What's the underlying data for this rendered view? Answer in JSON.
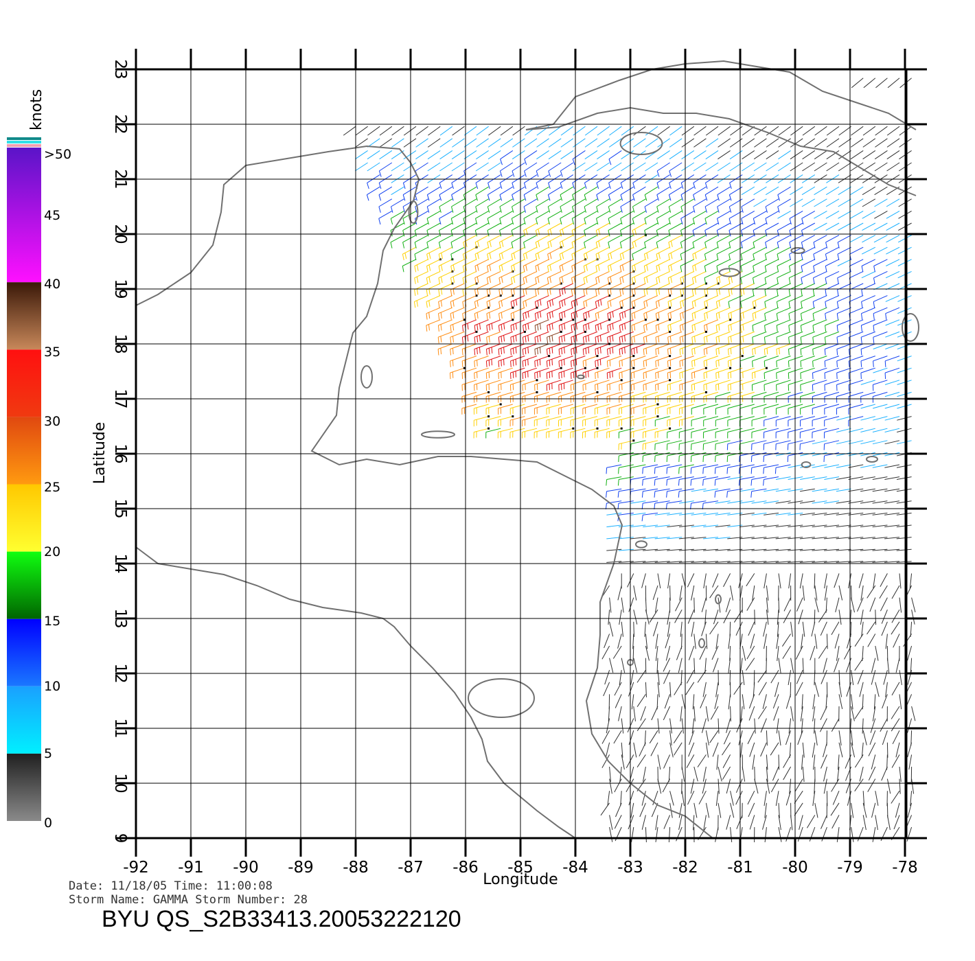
{
  "axes": {
    "xlabel": "Longitude",
    "ylabel": "Latitude",
    "lon_ticks": [
      "-92",
      "-91",
      "-90",
      "-89",
      "-88",
      "-87",
      "-86",
      "-85",
      "-84",
      "-83",
      "-82",
      "-81",
      "-80",
      "-79",
      "-78"
    ],
    "lat_ticks": [
      "9",
      "10",
      "11",
      "12",
      "13",
      "14",
      "15",
      "16",
      "17",
      "18",
      "19",
      "20",
      "21",
      "22",
      "23"
    ],
    "lon_range": [
      -92,
      -77.6
    ],
    "lat_range": [
      9,
      23
    ]
  },
  "colorbar": {
    "unit": "knots",
    "labels": [
      ">50",
      "45",
      "40",
      "35",
      "30",
      "25",
      "20",
      "15",
      "10",
      "5",
      "0"
    ],
    "bands": [
      {
        "from": 50,
        "to": 40,
        "top": "#5a14c8",
        "bottom": "#ff10ff"
      },
      {
        "from": 40,
        "to": 35,
        "top": "#3a1808",
        "bottom": "#c8885a"
      },
      {
        "from": 35,
        "to": 30,
        "top": "#ff1010",
        "bottom": "#f03a10"
      },
      {
        "from": 30,
        "to": 25,
        "top": "#e04810",
        "bottom": "#ff9a10"
      },
      {
        "from": 25,
        "to": 20,
        "top": "#ffc800",
        "bottom": "#ffff30"
      },
      {
        "from": 20,
        "to": 15,
        "top": "#10ff10",
        "bottom": "#006400"
      },
      {
        "from": 15,
        "to": 10,
        "top": "#0000ff",
        "bottom": "#1a78ff"
      },
      {
        "from": 10,
        "to": 5,
        "top": "#1aa0ff",
        "bottom": "#00f0ff"
      },
      {
        "from": 5,
        "to": 0,
        "top": "#202020",
        "bottom": "#8a8a8a"
      }
    ]
  },
  "info": {
    "date_line": "Date: 11/18/05   Time: 11:00:08",
    "storm_line": "Storm  Name: GAMMA   Storm  Number: 28",
    "file_id": "BYU  QS_S2B33413.20053222120"
  },
  "colors": {
    "coast": "#707070",
    "grid": "#000000",
    "background": "#ffffff"
  },
  "coastlines": [
    {
      "name": "gulf-coast",
      "points": [
        [
          -92,
          18.7
        ],
        [
          -91.6,
          18.9
        ],
        [
          -91,
          19.3
        ],
        [
          -90.6,
          19.8
        ],
        [
          -90.45,
          20.4
        ],
        [
          -90.4,
          20.9
        ],
        [
          -90,
          21.25
        ],
        [
          -89.4,
          21.35
        ],
        [
          -88.5,
          21.5
        ],
        [
          -87.8,
          21.6
        ],
        [
          -87.2,
          21.55
        ],
        [
          -87,
          21.3
        ],
        [
          -86.85,
          21
        ],
        [
          -86.95,
          20.6
        ],
        [
          -87.3,
          20.1
        ],
        [
          -87.5,
          19.7
        ],
        [
          -87.6,
          19.1
        ],
        [
          -87.8,
          18.5
        ],
        [
          -88.05,
          18.2
        ],
        [
          -88.15,
          17.8
        ],
        [
          -88.3,
          17.2
        ],
        [
          -88.35,
          16.7
        ],
        [
          -88.8,
          16.05
        ],
        [
          -88.3,
          15.8
        ],
        [
          -87.8,
          15.9
        ],
        [
          -87.2,
          15.8
        ],
        [
          -86.5,
          15.95
        ],
        [
          -85.9,
          15.95
        ],
        [
          -85.3,
          15.9
        ],
        [
          -84.7,
          15.85
        ],
        [
          -84.2,
          15.6
        ],
        [
          -83.7,
          15.35
        ],
        [
          -83.3,
          15.05
        ],
        [
          -83.15,
          14.7
        ],
        [
          -83.3,
          14.0
        ],
        [
          -83.55,
          13.3
        ],
        [
          -83.55,
          12.7
        ],
        [
          -83.6,
          12.1
        ],
        [
          -83.8,
          11.5
        ],
        [
          -83.7,
          10.9
        ],
        [
          -83.4,
          10.4
        ],
        [
          -83.0,
          10.0
        ],
        [
          -82.5,
          9.6
        ],
        [
          -82.0,
          9.4
        ],
        [
          -81.5,
          9.0
        ]
      ]
    },
    {
      "name": "pacific-coast",
      "points": [
        [
          -92,
          14.3
        ],
        [
          -91.6,
          14.0
        ],
        [
          -91,
          13.9
        ],
        [
          -90.4,
          13.8
        ],
        [
          -89.8,
          13.6
        ],
        [
          -89.2,
          13.35
        ],
        [
          -88.6,
          13.2
        ],
        [
          -87.9,
          13.1
        ],
        [
          -87.5,
          13.0
        ],
        [
          -87.3,
          12.85
        ],
        [
          -87.0,
          12.5
        ],
        [
          -86.6,
          12.1
        ],
        [
          -86.2,
          11.65
        ],
        [
          -85.9,
          11.2
        ],
        [
          -85.7,
          10.8
        ],
        [
          -85.6,
          10.4
        ],
        [
          -85.3,
          10.0
        ],
        [
          -85.0,
          9.75
        ],
        [
          -84.7,
          9.5
        ],
        [
          -84.3,
          9.2
        ],
        [
          -84.0,
          9.0
        ]
      ]
    },
    {
      "name": "cuba-coast",
      "points": [
        [
          -84.9,
          21.9
        ],
        [
          -84.4,
          22.0
        ],
        [
          -84.0,
          22.5
        ],
        [
          -83.2,
          22.8
        ],
        [
          -82.6,
          23.0
        ],
        [
          -82.0,
          23.1
        ],
        [
          -81.3,
          23.15
        ],
        [
          -80.7,
          23.05
        ],
        [
          -80.1,
          22.95
        ],
        [
          -79.5,
          22.6
        ],
        [
          -78.9,
          22.4
        ],
        [
          -78.3,
          22.2
        ],
        [
          -77.8,
          21.9
        ]
      ]
    },
    {
      "name": "cuba-south-coast",
      "points": [
        [
          -84.9,
          21.9
        ],
        [
          -84.3,
          21.95
        ],
        [
          -83.6,
          22.2
        ],
        [
          -83.0,
          22.3
        ],
        [
          -82.4,
          22.2
        ],
        [
          -81.8,
          22.2
        ],
        [
          -81.2,
          22.1
        ],
        [
          -80.5,
          21.85
        ],
        [
          -79.9,
          21.6
        ],
        [
          -79.3,
          21.5
        ],
        [
          -78.8,
          21.2
        ],
        [
          -78.3,
          20.9
        ],
        [
          -77.8,
          20.7
        ]
      ]
    }
  ],
  "islands": [
    {
      "name": "isla-de-la-juventud",
      "cx": -82.8,
      "cy": 21.65,
      "rx": 0.38,
      "ry": 0.2
    },
    {
      "name": "grand-cayman",
      "cx": -81.2,
      "cy": 19.3,
      "rx": 0.18,
      "ry": 0.07
    },
    {
      "name": "cayman-brac",
      "cx": -79.95,
      "cy": 19.7,
      "rx": 0.12,
      "ry": 0.05
    },
    {
      "name": "jamaica-west",
      "cx": -77.9,
      "cy": 18.3,
      "rx": 0.15,
      "ry": 0.25
    },
    {
      "name": "swan-islands",
      "cx": -83.9,
      "cy": 17.4,
      "rx": 0.06,
      "ry": 0.03
    },
    {
      "name": "roatan",
      "cx": -86.5,
      "cy": 16.35,
      "rx": 0.3,
      "ry": 0.06
    },
    {
      "name": "turneffe",
      "cx": -87.8,
      "cy": 17.4,
      "rx": 0.1,
      "ry": 0.2
    },
    {
      "name": "cozumel",
      "cx": -86.95,
      "cy": 20.4,
      "rx": 0.08,
      "ry": 0.2
    },
    {
      "name": "lake-nicaragua",
      "cx": -85.35,
      "cy": 11.55,
      "rx": 0.6,
      "ry": 0.35
    },
    {
      "name": "providencia",
      "cx": -81.4,
      "cy": 13.35,
      "rx": 0.05,
      "ry": 0.08
    },
    {
      "name": "san-andres",
      "cx": -81.7,
      "cy": 12.55,
      "rx": 0.05,
      "ry": 0.08
    },
    {
      "name": "corn-islands",
      "cx": -83.0,
      "cy": 12.2,
      "rx": 0.05,
      "ry": 0.05
    },
    {
      "name": "miskito-cays",
      "cx": -82.8,
      "cy": 14.35,
      "rx": 0.1,
      "ry": 0.06
    },
    {
      "name": "serranilla",
      "cx": -79.8,
      "cy": 15.8,
      "rx": 0.08,
      "ry": 0.05
    },
    {
      "name": "pedro-bank",
      "cx": -78.6,
      "cy": 15.9,
      "rx": 0.1,
      "ry": 0.05
    }
  ]
}
